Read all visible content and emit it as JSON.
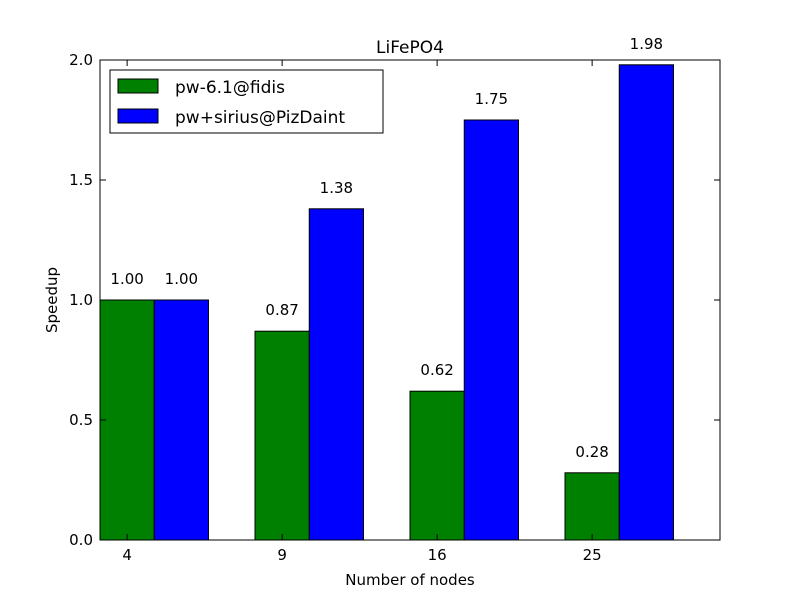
{
  "chart_data": {
    "type": "bar",
    "title": "LiFePO4",
    "xlabel": "Number of nodes",
    "ylabel": "Speedup",
    "categories": [
      "4",
      "9",
      "16",
      "25"
    ],
    "series": [
      {
        "name": "pw-6.1@fidis",
        "values": [
          1.0,
          0.87,
          0.62,
          0.28
        ],
        "labels": [
          "1.00",
          "0.87",
          "0.62",
          "0.28"
        ],
        "color": "#008000"
      },
      {
        "name": "pw+sirius@PizDaint",
        "values": [
          1.0,
          1.38,
          1.75,
          1.98
        ],
        "labels": [
          "1.00",
          "1.38",
          "1.75",
          "1.98"
        ],
        "color": "#0000ff"
      }
    ],
    "ylim": [
      0,
      2.0
    ],
    "yticks": [
      "0.0",
      "0.5",
      "1.0",
      "1.5",
      "2.0"
    ],
    "grid": false,
    "legend_position": "top-left"
  }
}
